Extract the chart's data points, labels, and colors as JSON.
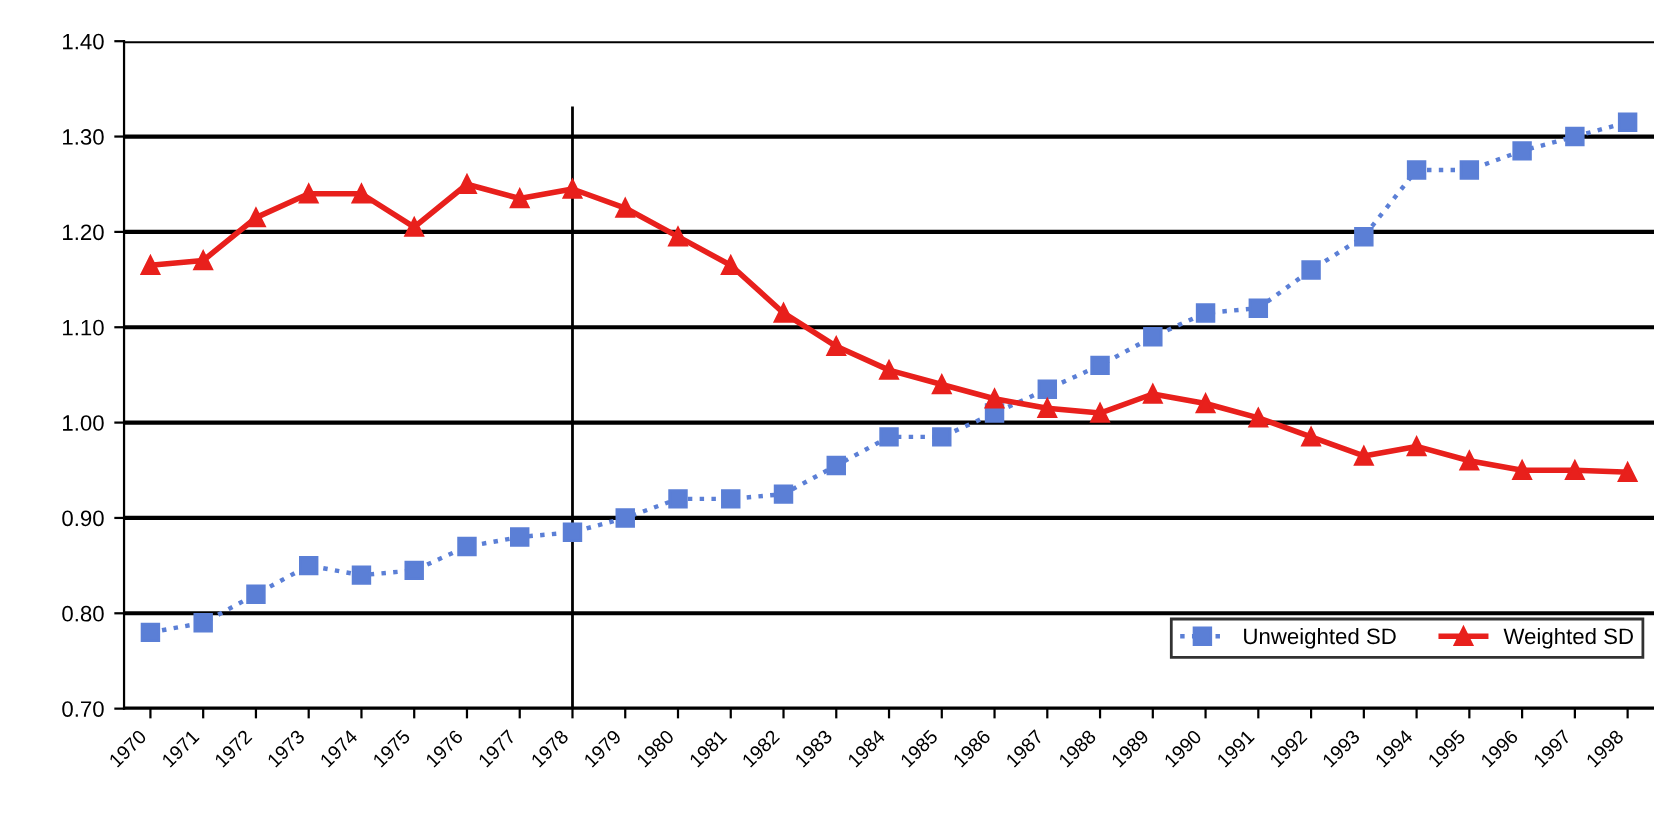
{
  "chart_data": {
    "type": "line",
    "categories": [
      "1970",
      "1971",
      "1972",
      "1973",
      "1974",
      "1975",
      "1976",
      "1977",
      "1978",
      "1979",
      "1980",
      "1981",
      "1982",
      "1983",
      "1984",
      "1985",
      "1986",
      "1987",
      "1988",
      "1989",
      "1990",
      "1991",
      "1992",
      "1993",
      "1994",
      "1995",
      "1996",
      "1997",
      "1998"
    ],
    "series": [
      {
        "name": "Unweighted SD",
        "color": "#5b7fd6",
        "marker": "square",
        "line_style": "dotted",
        "values": [
          0.78,
          0.79,
          0.82,
          0.85,
          0.84,
          0.845,
          0.87,
          0.88,
          0.885,
          0.9,
          0.92,
          0.92,
          0.925,
          0.955,
          0.985,
          0.985,
          1.01,
          1.035,
          1.06,
          1.09,
          1.115,
          1.12,
          1.16,
          1.195,
          1.265,
          1.265,
          1.285,
          1.3,
          1.315
        ]
      },
      {
        "name": "Weighted SD",
        "color": "#e8201c",
        "marker": "triangle",
        "line_style": "solid",
        "values": [
          1.165,
          1.17,
          1.215,
          1.24,
          1.24,
          1.205,
          1.25,
          1.235,
          1.245,
          1.225,
          1.195,
          1.165,
          1.115,
          1.08,
          1.055,
          1.04,
          1.025,
          1.015,
          1.01,
          1.03,
          1.02,
          1.005,
          0.985,
          0.965,
          0.975,
          0.96,
          0.95,
          0.95,
          0.948
        ]
      }
    ],
    "ylim": [
      0.7,
      1.4
    ],
    "yticks": [
      {
        "value": 0.7,
        "label": "0.70"
      },
      {
        "value": 0.8,
        "label": "0.80"
      },
      {
        "value": 0.9,
        "label": "0.90"
      },
      {
        "value": 1.0,
        "label": "1.00"
      },
      {
        "value": 1.1,
        "label": "1.10"
      },
      {
        "value": 1.2,
        "label": "1.20"
      },
      {
        "value": 1.3,
        "label": "1.30"
      },
      {
        "value": 1.4,
        "label": "1.40"
      }
    ],
    "grid": "y",
    "legend": "bottom right",
    "ref_lines": [
      {
        "axis": "x",
        "value": "1978",
        "color": "#000000"
      }
    ]
  }
}
